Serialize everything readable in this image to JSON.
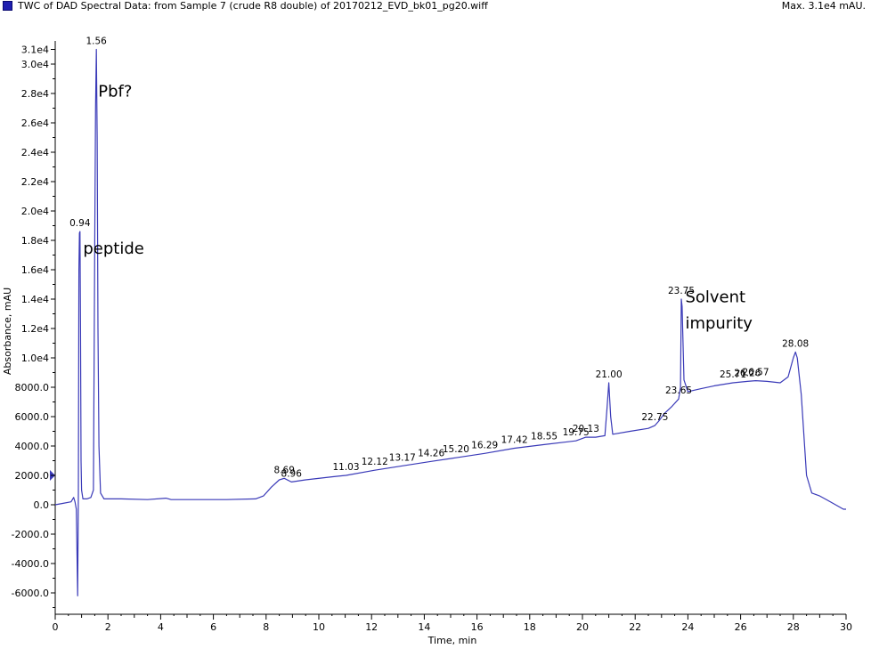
{
  "window": {
    "title": "TWC of DAD Spectral Data: from Sample 7 (crude R8 double) of 20170212_EVD_bk01_pg20.wiff",
    "max_label": "Max. 3.1e4 mAU.",
    "accent_color": "#1f1fb0"
  },
  "chart_data": {
    "type": "line",
    "xlabel": "Time, min",
    "ylabel": "Absorbance, mAU",
    "xlim": [
      0,
      30
    ],
    "ylim": [
      -7500,
      31000
    ],
    "xticks": [
      0,
      2,
      4,
      6,
      8,
      10,
      12,
      14,
      16,
      18,
      20,
      22,
      24,
      26,
      28,
      30
    ],
    "yticks": [
      {
        "v": 31000,
        "label": "3.1e4"
      },
      {
        "v": 30000,
        "label": "3.0e4"
      },
      {
        "v": 28000,
        "label": "2.8e4"
      },
      {
        "v": 26000,
        "label": "2.6e4"
      },
      {
        "v": 24000,
        "label": "2.4e4"
      },
      {
        "v": 22000,
        "label": "2.2e4"
      },
      {
        "v": 20000,
        "label": "2.0e4"
      },
      {
        "v": 18000,
        "label": "1.8e4"
      },
      {
        "v": 16000,
        "label": "1.6e4"
      },
      {
        "v": 14000,
        "label": "1.4e4"
      },
      {
        "v": 12000,
        "label": "1.2e4"
      },
      {
        "v": 10000,
        "label": "1.0e4"
      },
      {
        "v": 8000,
        "label": "8000.0"
      },
      {
        "v": 6000,
        "label": "6000.0"
      },
      {
        "v": 4000,
        "label": "4000.0"
      },
      {
        "v": 2000,
        "label": "2000.0"
      },
      {
        "v": 0,
        "label": "0.0"
      },
      {
        "v": -2000,
        "label": "-2000.0"
      },
      {
        "v": -4000,
        "label": "-4000.0"
      },
      {
        "v": -6000,
        "label": "-6000.0"
      }
    ],
    "line_color": "#3a3ab8",
    "series": [
      {
        "points": [
          [
            0.0,
            0
          ],
          [
            0.3,
            100
          ],
          [
            0.6,
            200
          ],
          [
            0.7,
            500
          ],
          [
            0.75,
            200
          ],
          [
            0.8,
            -300
          ],
          [
            0.85,
            -6200
          ],
          [
            0.88,
            800
          ],
          [
            0.9,
            16000
          ],
          [
            0.92,
            18500
          ],
          [
            0.94,
            18600
          ],
          [
            0.96,
            12000
          ],
          [
            0.98,
            3000
          ],
          [
            1.0,
            1000
          ],
          [
            1.05,
            400
          ],
          [
            1.2,
            400
          ],
          [
            1.35,
            500
          ],
          [
            1.45,
            1000
          ],
          [
            1.5,
            18000
          ],
          [
            1.53,
            27000
          ],
          [
            1.56,
            31000
          ],
          [
            1.59,
            25000
          ],
          [
            1.62,
            12000
          ],
          [
            1.66,
            4000
          ],
          [
            1.72,
            800
          ],
          [
            1.85,
            400
          ],
          [
            2.5,
            400
          ],
          [
            3.5,
            350
          ],
          [
            4.2,
            450
          ],
          [
            4.4,
            350
          ],
          [
            6.5,
            350
          ],
          [
            7.6,
            400
          ],
          [
            7.9,
            600
          ],
          [
            8.2,
            1200
          ],
          [
            8.5,
            1700
          ],
          [
            8.69,
            1800
          ],
          [
            8.96,
            1550
          ],
          [
            9.5,
            1700
          ],
          [
            10.5,
            1900
          ],
          [
            11.03,
            2000
          ],
          [
            12.12,
            2350
          ],
          [
            13.17,
            2650
          ],
          [
            14.26,
            2950
          ],
          [
            15.2,
            3200
          ],
          [
            16.29,
            3500
          ],
          [
            17.42,
            3850
          ],
          [
            18.55,
            4100
          ],
          [
            19.75,
            4350
          ],
          [
            20.13,
            4600
          ],
          [
            20.5,
            4600
          ],
          [
            20.85,
            4700
          ],
          [
            20.93,
            6500
          ],
          [
            21.0,
            8300
          ],
          [
            21.07,
            6000
          ],
          [
            21.15,
            4800
          ],
          [
            21.8,
            5000
          ],
          [
            22.5,
            5200
          ],
          [
            22.75,
            5400
          ],
          [
            22.9,
            5700
          ],
          [
            23.1,
            6200
          ],
          [
            23.4,
            6700
          ],
          [
            23.65,
            7200
          ],
          [
            23.72,
            8000
          ],
          [
            23.75,
            14000
          ],
          [
            23.78,
            13500
          ],
          [
            23.85,
            8500
          ],
          [
            24.0,
            7700
          ],
          [
            24.5,
            7900
          ],
          [
            25.0,
            8100
          ],
          [
            25.71,
            8300
          ],
          [
            26.26,
            8400
          ],
          [
            26.57,
            8450
          ],
          [
            27.0,
            8400
          ],
          [
            27.5,
            8300
          ],
          [
            27.8,
            8700
          ],
          [
            28.0,
            10000
          ],
          [
            28.08,
            10400
          ],
          [
            28.15,
            10000
          ],
          [
            28.3,
            7500
          ],
          [
            28.5,
            2000
          ],
          [
            28.7,
            800
          ],
          [
            29.0,
            600
          ],
          [
            29.3,
            300
          ],
          [
            29.6,
            0
          ],
          [
            29.9,
            -300
          ],
          [
            30.0,
            -300
          ]
        ]
      }
    ],
    "peak_labels": [
      {
        "x": 0.94,
        "y": 18600,
        "text": "0.94"
      },
      {
        "x": 1.56,
        "y": 31000,
        "text": "1.56"
      },
      {
        "x": 8.69,
        "y": 1800,
        "text": "8.69"
      },
      {
        "x": 8.96,
        "y": 1550,
        "text": "8.96"
      },
      {
        "x": 11.03,
        "y": 2000,
        "text": "11.03"
      },
      {
        "x": 12.12,
        "y": 2350,
        "text": "12.12"
      },
      {
        "x": 13.17,
        "y": 2650,
        "text": "13.17"
      },
      {
        "x": 14.26,
        "y": 2950,
        "text": "14.26"
      },
      {
        "x": 15.2,
        "y": 3200,
        "text": "15.20"
      },
      {
        "x": 16.29,
        "y": 3500,
        "text": "16.29"
      },
      {
        "x": 17.42,
        "y": 3850,
        "text": "17.42"
      },
      {
        "x": 18.55,
        "y": 4100,
        "text": "18.55"
      },
      {
        "x": 19.75,
        "y": 4350,
        "text": "19.75"
      },
      {
        "x": 20.13,
        "y": 4600,
        "text": "20.13"
      },
      {
        "x": 21.0,
        "y": 8300,
        "text": "21.00"
      },
      {
        "x": 22.75,
        "y": 5400,
        "text": "22.75"
      },
      {
        "x": 23.65,
        "y": 7200,
        "text": "23.65"
      },
      {
        "x": 23.75,
        "y": 14000,
        "text": "23.75"
      },
      {
        "x": 25.71,
        "y": 8300,
        "text": "25.71"
      },
      {
        "x": 26.26,
        "y": 8400,
        "text": "26.26"
      },
      {
        "x": 26.57,
        "y": 8450,
        "text": "26.57"
      },
      {
        "x": 28.08,
        "y": 10400,
        "text": "28.08"
      }
    ],
    "annotations": [
      {
        "text": "Pbf?",
        "x": 1.63,
        "y": 27800
      },
      {
        "text": "peptide",
        "x": 1.06,
        "y": 17100
      },
      {
        "text": "Solvent",
        "x": 23.9,
        "y": 13800
      },
      {
        "text": "impurity",
        "x": 23.9,
        "y": 12000
      }
    ]
  }
}
